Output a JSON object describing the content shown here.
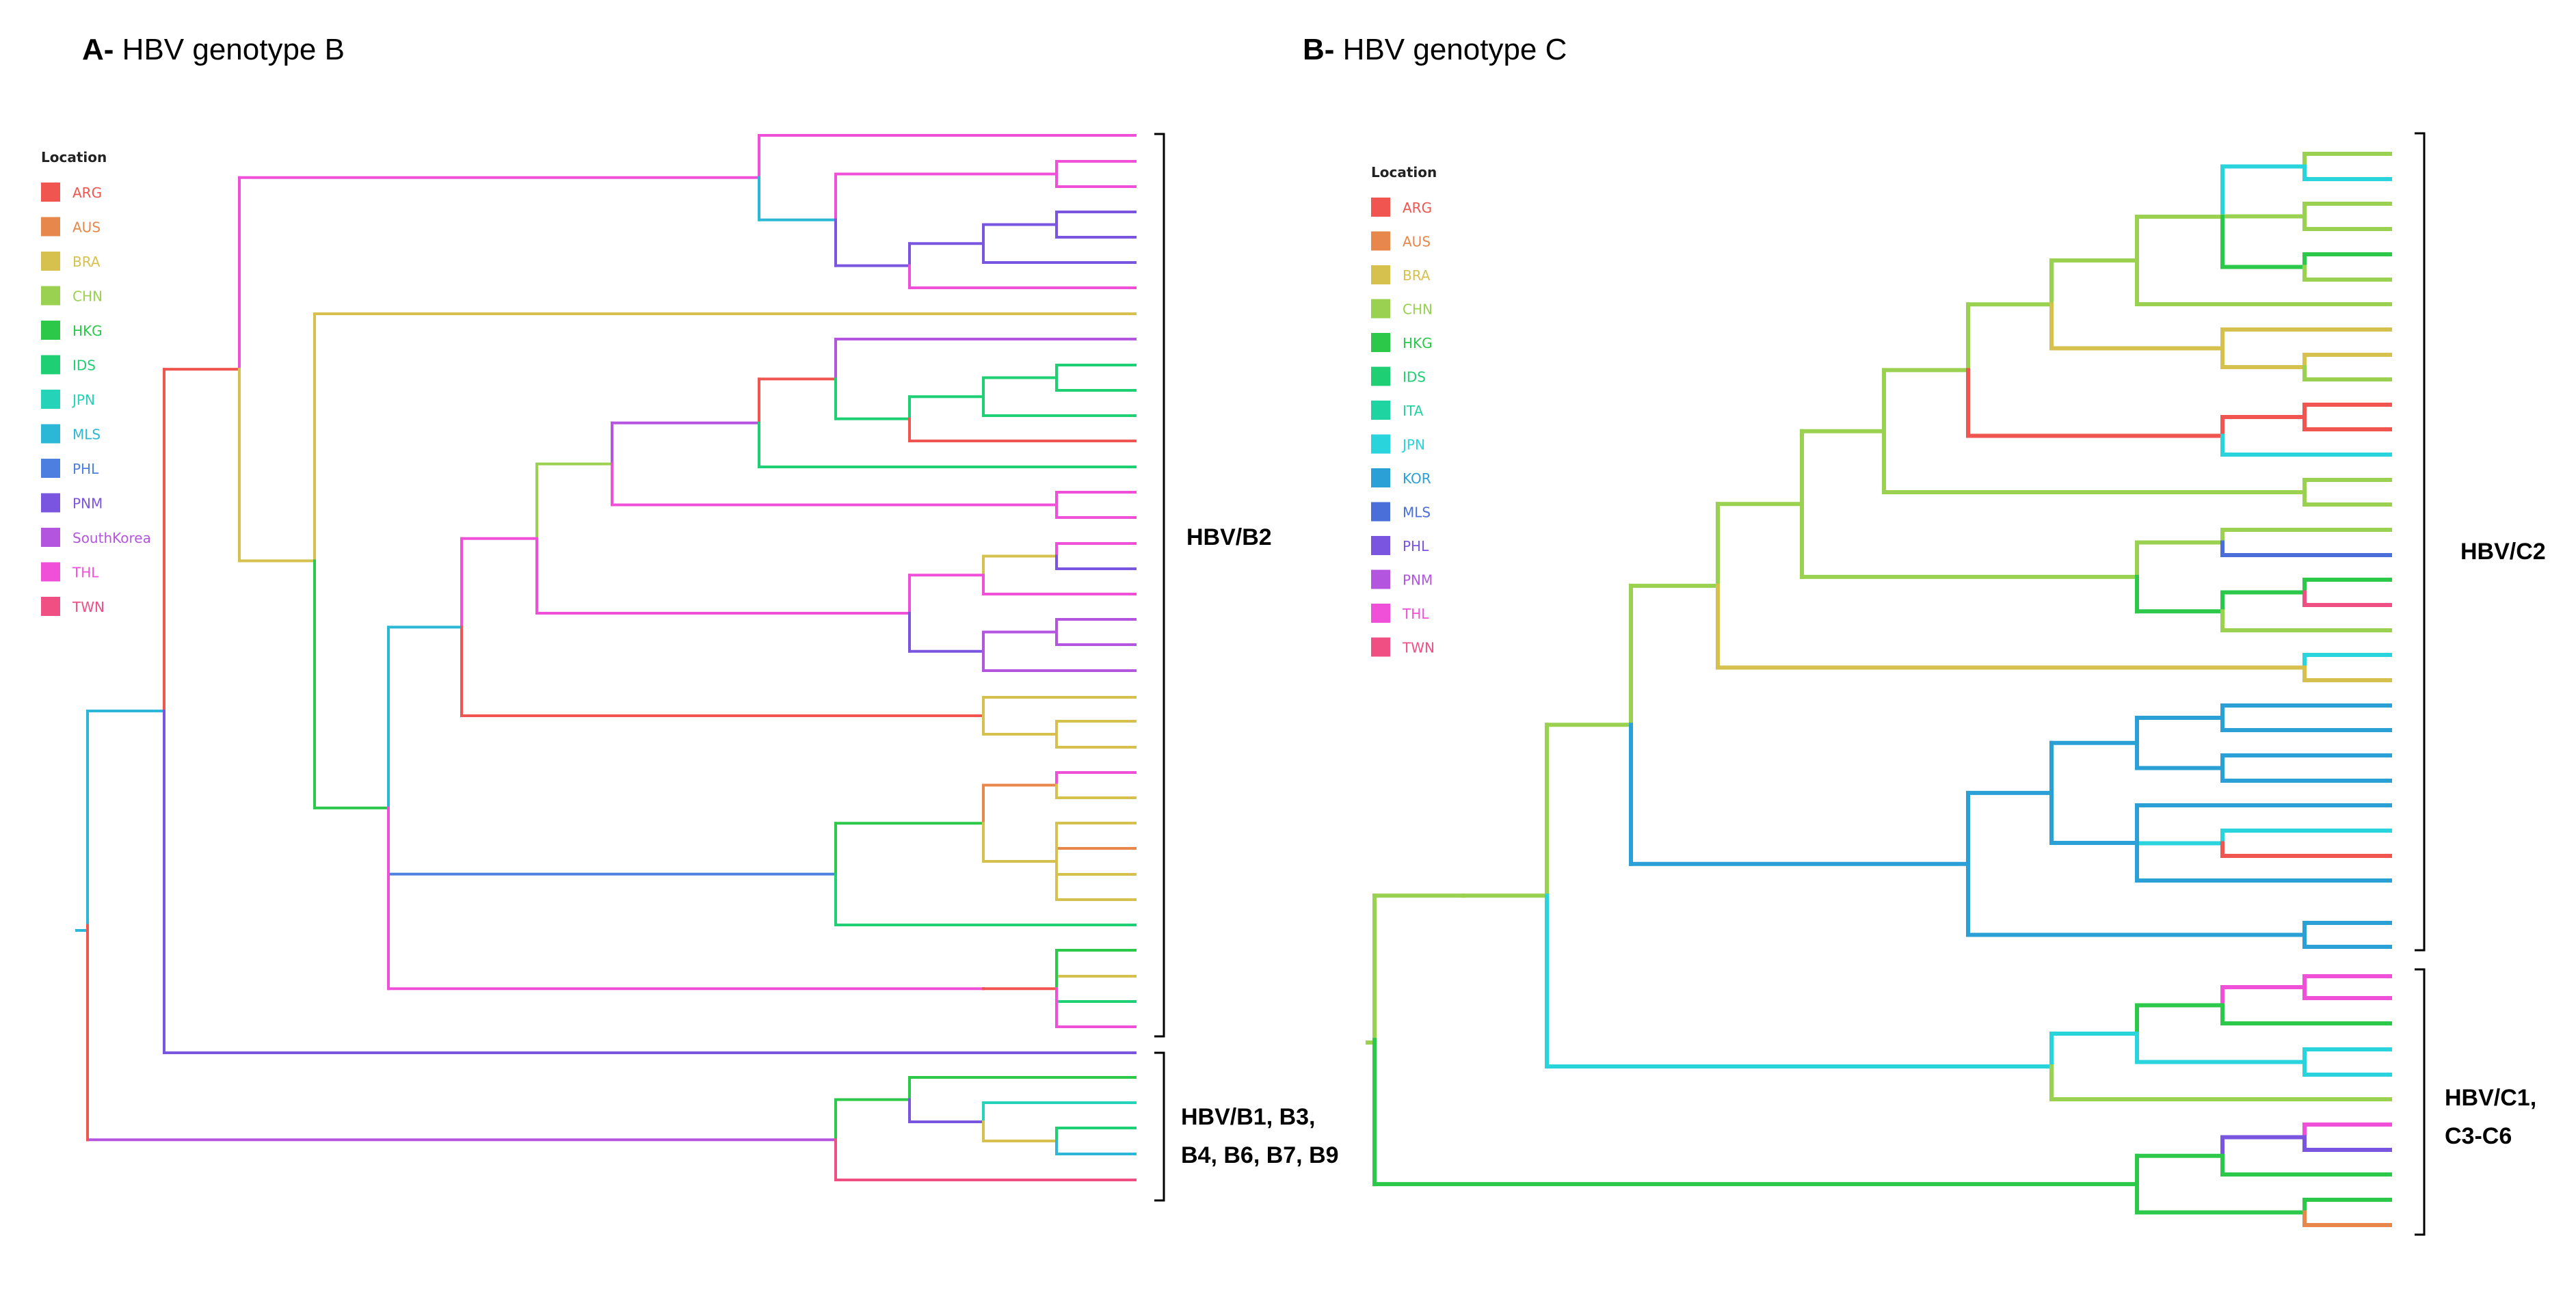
{
  "panels": [
    {
      "id": "A",
      "title_prefix": "A-",
      "title_text": " HBV genotype B",
      "legend": {
        "title": "Location",
        "entries": [
          {
            "label": "ARG",
            "color": "#f0554f"
          },
          {
            "label": "AUS",
            "color": "#e8874b"
          },
          {
            "label": "BRA",
            "color": "#d6c14e"
          },
          {
            "label": "CHN",
            "color": "#9ad150"
          },
          {
            "label": "HKG",
            "color": "#2bc84a"
          },
          {
            "label": "IDS",
            "color": "#1fcf74"
          },
          {
            "label": "JPN",
            "color": "#24d3b8"
          },
          {
            "label": "MLS",
            "color": "#2bb7d6"
          },
          {
            "label": "PHL",
            "color": "#4c7fe0"
          },
          {
            "label": "PNM",
            "color": "#7a55e0"
          },
          {
            "label": "SouthKorea",
            "color": "#b455e0"
          },
          {
            "label": "THL",
            "color": "#f050d8"
          },
          {
            "label": "TWN",
            "color": "#f04f84"
          }
        ]
      },
      "clades": [
        {
          "label_lines": [
            "HBV/B2"
          ]
        },
        {
          "label_lines": [
            "HBV/B1, B3,",
            "B4, B6, B7, B9"
          ]
        }
      ]
    },
    {
      "id": "B",
      "title_prefix": "B-",
      "title_text": " HBV genotype C",
      "legend": {
        "title": "Location",
        "entries": [
          {
            "label": "ARG",
            "color": "#f0554f"
          },
          {
            "label": "AUS",
            "color": "#e8874b"
          },
          {
            "label": "BRA",
            "color": "#d6c14e"
          },
          {
            "label": "CHN",
            "color": "#9ad150"
          },
          {
            "label": "HKG",
            "color": "#2bc84a"
          },
          {
            "label": "IDS",
            "color": "#1fcf74"
          },
          {
            "label": "ITA",
            "color": "#1fd4a0"
          },
          {
            "label": "JPN",
            "color": "#2ad4dc"
          },
          {
            "label": "KOR",
            "color": "#2aa0d6"
          },
          {
            "label": "MLS",
            "color": "#4a6fd8"
          },
          {
            "label": "PHL",
            "color": "#7a55e0"
          },
          {
            "label": "PNM",
            "color": "#b455e0"
          },
          {
            "label": "THL",
            "color": "#f050d8"
          },
          {
            "label": "TWN",
            "color": "#f04f84"
          }
        ]
      },
      "clades": [
        {
          "label_lines": [
            "HBV/C2"
          ]
        },
        {
          "label_lines": [
            "HBV/C1,",
            "C3-C6"
          ]
        }
      ]
    }
  ]
}
